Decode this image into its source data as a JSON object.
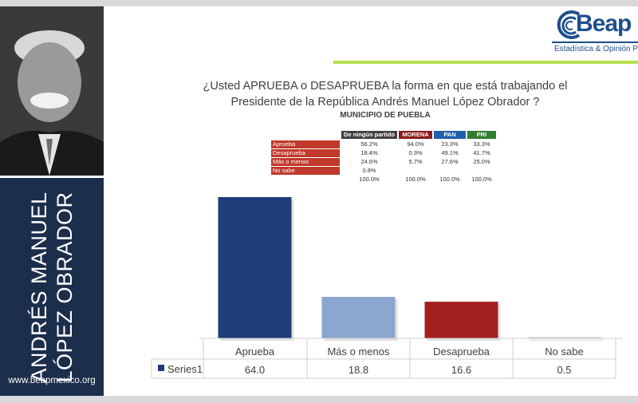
{
  "sidebar": {
    "name_line1": "ANDRÉS MANUEL",
    "name_line2": "LÓPEZ OBRADOR",
    "website": "www.beapmexico.org"
  },
  "logo": {
    "brand": "Beap",
    "tagline": "Estadística & Opinión P",
    "brand_color": "#1f4e8c"
  },
  "header": {
    "question_line1": "¿Usted APRUEBA o DESAPRUEBA la forma en que está trabajando el",
    "question_line2": "Presidente de la República Andrés Manuel López Obrador ?",
    "subtitle": "MUNICIPIO DE PUEBLA"
  },
  "crosstab": {
    "columns": [
      {
        "label": "De ningún partido",
        "color": "#404040"
      },
      {
        "label": "MORENA",
        "color": "#8b1a1a"
      },
      {
        "label": "PAN",
        "color": "#1f5fae"
      },
      {
        "label": "PRI",
        "color": "#2e7d32"
      }
    ],
    "rows": [
      {
        "label": "Aprueba",
        "values": [
          "56.2%",
          "94.0%",
          "23.3%",
          "33.3%"
        ]
      },
      {
        "label": "Desaprueba",
        "values": [
          "18.4%",
          "0.3%",
          "49.1%",
          "41.7%"
        ]
      },
      {
        "label": "Más o menos",
        "values": [
          "24.6%",
          "5.7%",
          "27.6%",
          "25.0%"
        ]
      },
      {
        "label": "No sabe",
        "values": [
          "0.8%",
          "",
          "",
          ""
        ]
      }
    ],
    "totals": [
      "100.0%",
      "100.0%",
      "100.0%",
      "100.0%"
    ]
  },
  "chart_data": {
    "type": "bar",
    "categories": [
      "Aprueba",
      "Más o menos",
      "Desaprueba",
      "No sabe"
    ],
    "series": [
      {
        "name": "Series1",
        "values": [
          64.0,
          18.8,
          16.6,
          0.5
        ],
        "display": [
          "64.0",
          "18.8",
          "16.6",
          "0.5"
        ]
      }
    ],
    "colors": [
      "#1f3d7a",
      "#8ba6cf",
      "#a31f1f",
      "#bfbfbf"
    ],
    "ylim": [
      0,
      64
    ]
  }
}
